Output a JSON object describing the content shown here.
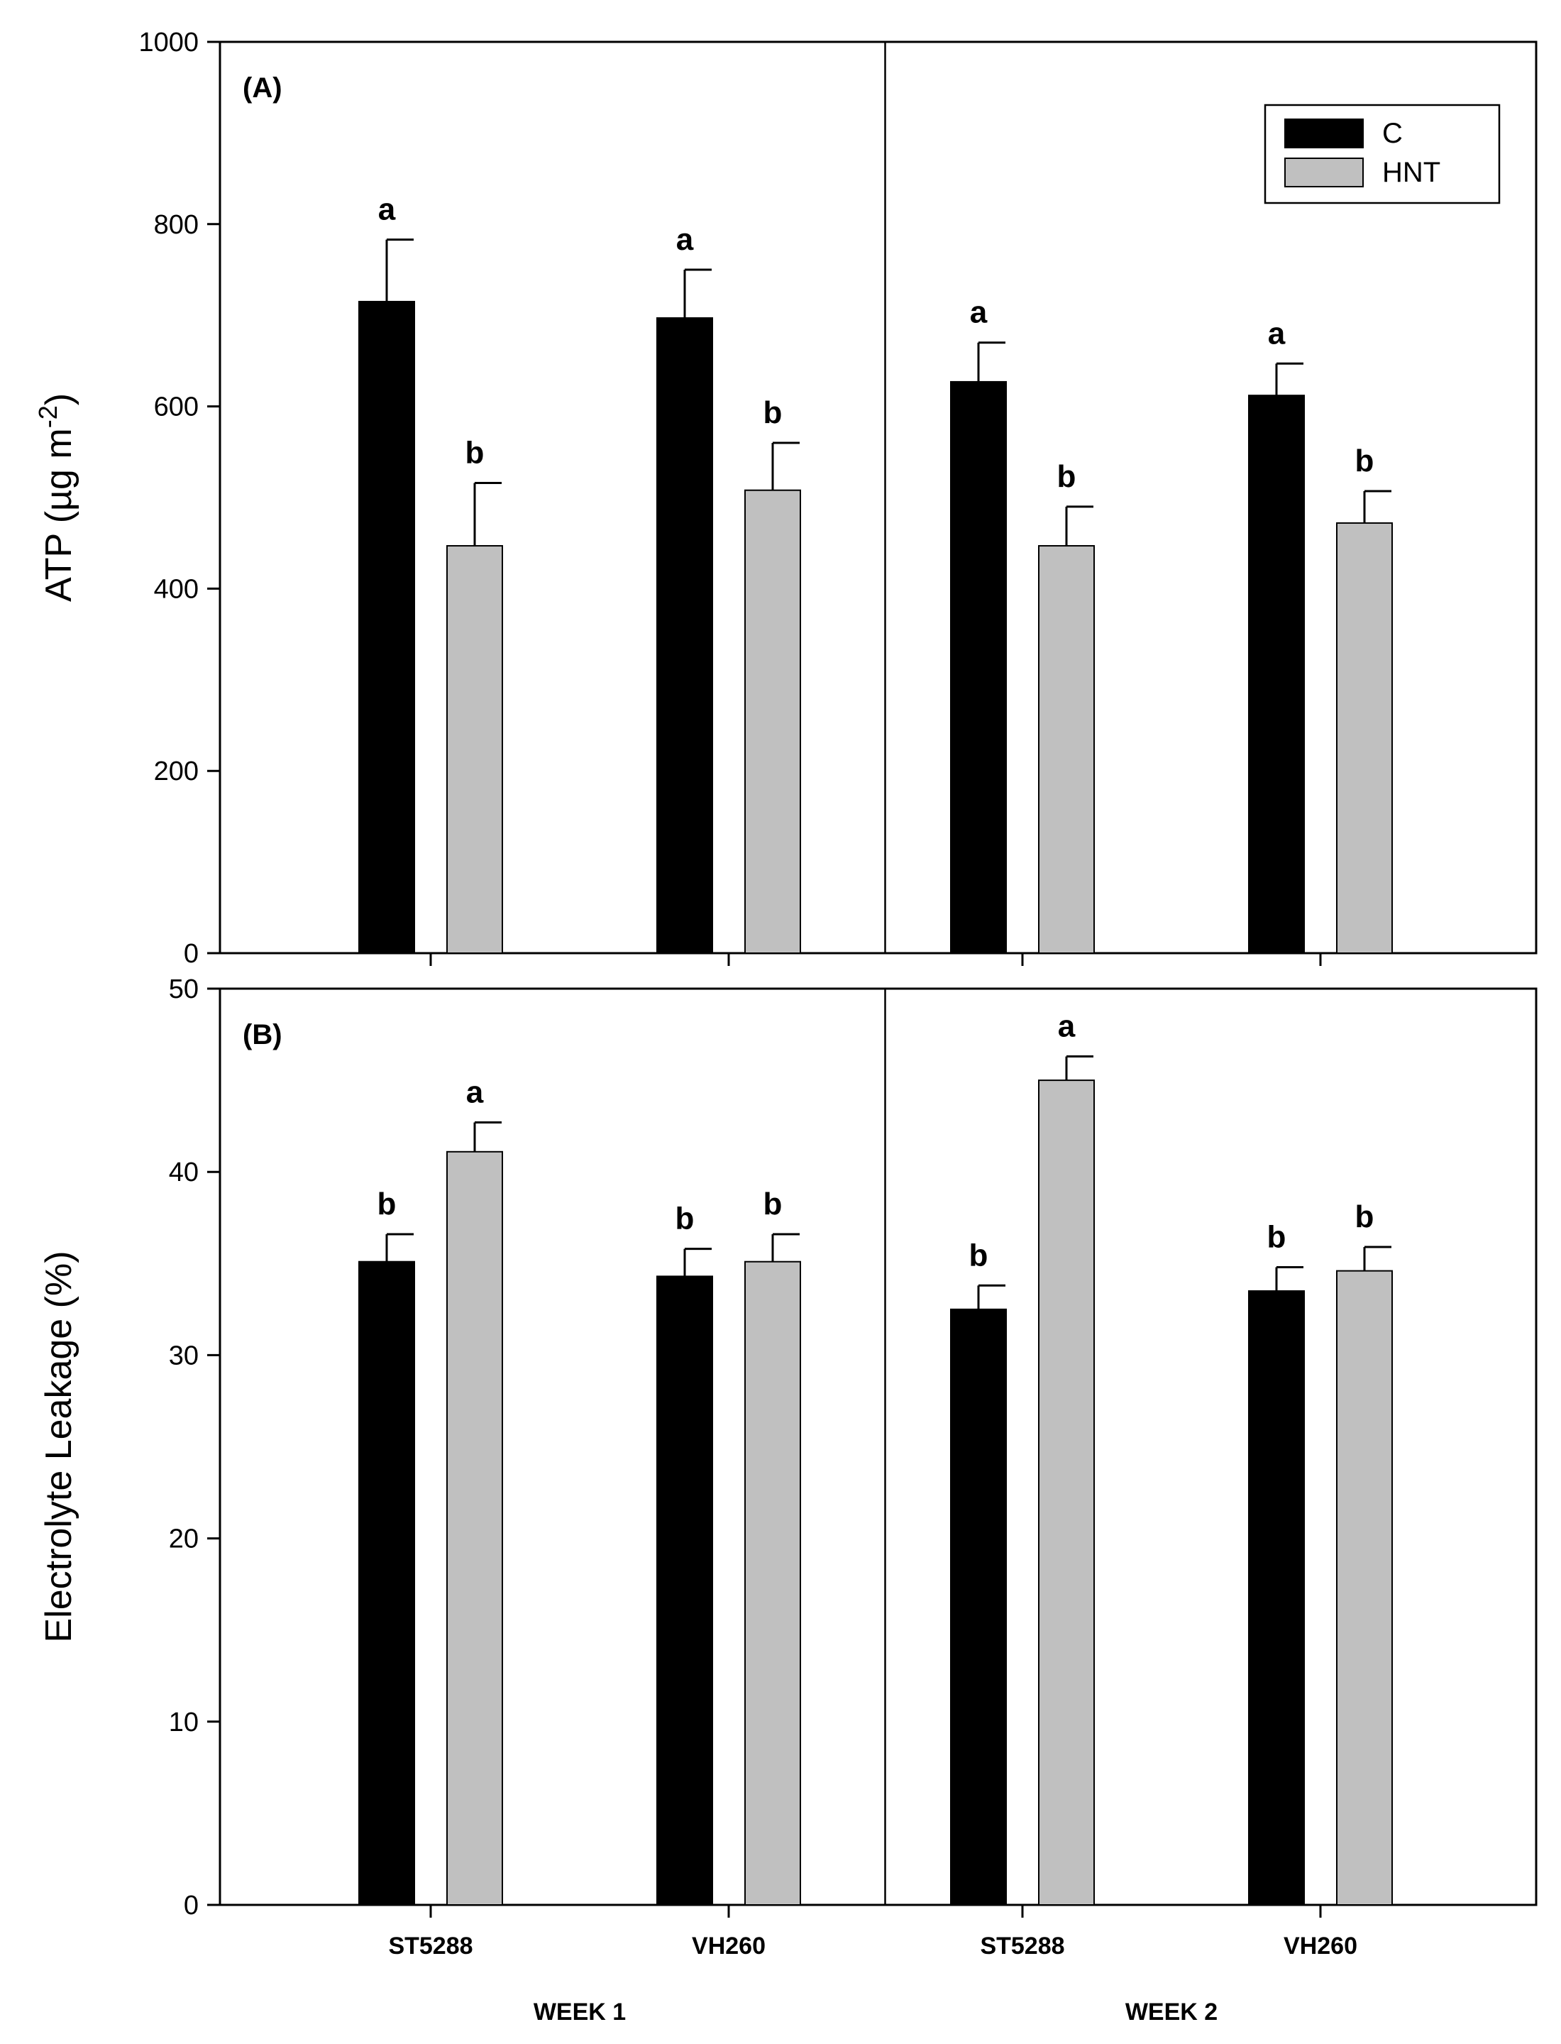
{
  "chart_data": [
    {
      "type": "bar",
      "panel_label": "(A)",
      "ylabel": {
        "base": "ATP (µg m",
        "sup": "-2",
        "close": ")"
      },
      "ylim": [
        0,
        1000
      ],
      "yticks": [
        "0",
        "200",
        "400",
        "600",
        "800",
        "1000"
      ],
      "groups": [
        {
          "week": "WEEK 1",
          "categories": [
            "ST5288",
            "VH260"
          ]
        },
        {
          "week": "WEEK 2",
          "categories": [
            "ST5288",
            "VH260"
          ]
        }
      ],
      "categories": [
        "ST5288",
        "VH260",
        "ST5288",
        "VH260"
      ],
      "series": [
        {
          "name": "C",
          "color": "#000000",
          "values": [
            715,
            697,
            627,
            612
          ],
          "errors": [
            68,
            53,
            43,
            35
          ],
          "letters": [
            "a",
            "a",
            "a",
            "a"
          ]
        },
        {
          "name": "HNT",
          "color": "#c0c0c0",
          "values": [
            447,
            508,
            447,
            472
          ],
          "errors": [
            69,
            52,
            43,
            35
          ],
          "letters": [
            "b",
            "b",
            "b",
            "b"
          ]
        }
      ],
      "legend": {
        "position": "top-right",
        "entries": [
          "C",
          "HNT"
        ]
      }
    },
    {
      "type": "bar",
      "panel_label": "(B)",
      "ylabel": {
        "base": "Electrolyte Leakage (%)",
        "sup": "",
        "close": ""
      },
      "ylim": [
        0,
        50
      ],
      "yticks": [
        "0",
        "10",
        "20",
        "30",
        "40",
        "50"
      ],
      "categories": [
        "ST5288",
        "VH260",
        "ST5288",
        "VH260"
      ],
      "series": [
        {
          "name": "C",
          "color": "#000000",
          "values": [
            35.1,
            34.3,
            32.5,
            33.5
          ],
          "errors": [
            1.5,
            1.5,
            1.3,
            1.3
          ],
          "letters": [
            "b",
            "b",
            "b",
            "b"
          ]
        },
        {
          "name": "HNT",
          "color": "#c0c0c0",
          "values": [
            41.1,
            35.1,
            45.0,
            34.6
          ],
          "errors": [
            1.6,
            1.5,
            1.3,
            1.3
          ],
          "letters": [
            "a",
            "b",
            "a",
            "b"
          ]
        }
      ]
    }
  ],
  "x_category_labels": [
    "ST5288",
    "VH260",
    "ST5288",
    "VH260"
  ],
  "week_labels": [
    "WEEK 1",
    "WEEK 2"
  ]
}
